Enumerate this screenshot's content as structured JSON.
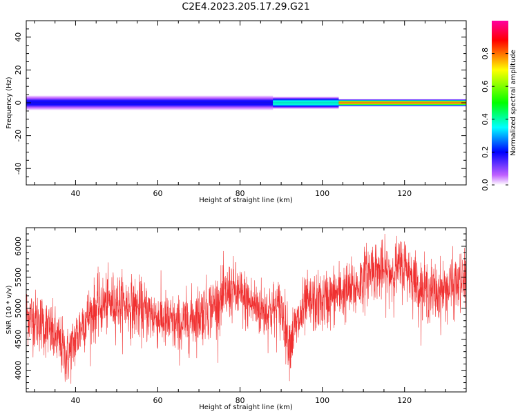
{
  "title": "C2E4.2023.205.17.29.G21",
  "chart_data": [
    {
      "type": "heatmap",
      "xlabel": "Height of straight line (km)",
      "ylabel": "Frequency (Hz)",
      "xlim": [
        28,
        135
      ],
      "ylim": [
        -50,
        50
      ],
      "xticks": [
        40,
        60,
        80,
        100,
        120
      ],
      "yticks": [
        -40,
        -20,
        0,
        20,
        40
      ],
      "colorbar": {
        "label": "Normalized spectral amplitude",
        "range": [
          0,
          1
        ],
        "ticks": [
          "0.0",
          "0.2",
          "0.4",
          "0.6",
          "0.8"
        ],
        "colors": [
          "#ffffff",
          "#c060ff",
          "#0000ff",
          "#00ffff",
          "#00ff00",
          "#ffff00",
          "#ff0000",
          "#ff00a0"
        ]
      },
      "bands": [
        {
          "x_start": 28,
          "x_end": 88,
          "half_width_hz": 3,
          "peak_amplitude": 0.3
        },
        {
          "x_start": 88,
          "x_end": 104,
          "half_width_hz": 2.5,
          "peak_amplitude": 0.5
        },
        {
          "x_start": 104,
          "x_end": 135,
          "half_width_hz": 1.5,
          "peak_amplitude": 0.85
        }
      ]
    },
    {
      "type": "line",
      "xlabel": "Height of straight line (km)",
      "ylabel": "SNR (10 * v/v)",
      "xlim": [
        28,
        135
      ],
      "ylim": [
        3650,
        6300
      ],
      "xticks": [
        40,
        60,
        80,
        100,
        120
      ],
      "yticks": [
        4000,
        4500,
        5000,
        5500,
        6000
      ],
      "line_color": "#f03030",
      "trend": {
        "x": [
          28,
          32,
          36,
          38,
          42,
          46,
          50,
          55,
          60,
          65,
          70,
          75,
          78,
          82,
          86,
          90,
          92,
          96,
          100,
          104,
          108,
          112,
          116,
          120,
          124,
          128,
          132,
          135
        ],
        "y": [
          4900,
          4750,
          4450,
          4200,
          4800,
          5050,
          5100,
          5000,
          4850,
          4700,
          4900,
          5100,
          5300,
          5100,
          4950,
          5000,
          4450,
          5050,
          5100,
          5250,
          5300,
          5650,
          5550,
          5700,
          5300,
          5250,
          5350,
          5450
        ]
      },
      "noise_amplitude": 320
    }
  ]
}
